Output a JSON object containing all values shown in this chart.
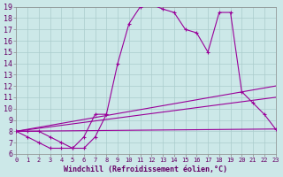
{
  "background_color": "#cce8e8",
  "line_color": "#990099",
  "grid_color": "#aacccc",
  "xlabel": "Windchill (Refroidissement éolien,°C)",
  "xlim": [
    0,
    23
  ],
  "ylim": [
    6,
    19
  ],
  "yticks": [
    6,
    7,
    8,
    9,
    10,
    11,
    12,
    13,
    14,
    15,
    16,
    17,
    18,
    19
  ],
  "xticks": [
    0,
    1,
    2,
    3,
    4,
    5,
    6,
    7,
    8,
    9,
    10,
    11,
    12,
    13,
    14,
    15,
    16,
    17,
    18,
    19,
    20,
    21,
    22,
    23
  ],
  "curve_main_x": [
    0,
    1,
    2,
    3,
    4,
    5,
    6,
    7,
    8,
    9,
    10,
    11,
    12,
    13,
    14,
    15,
    16,
    17,
    18,
    19,
    20,
    21,
    22,
    23
  ],
  "curve_main_y": [
    8.0,
    8.0,
    8.0,
    7.5,
    7.0,
    6.5,
    6.5,
    7.5,
    9.5,
    14.0,
    17.5,
    19.0,
    19.2,
    18.8,
    18.5,
    17.0,
    16.7,
    15.0,
    18.5,
    18.5,
    11.5,
    10.5,
    9.5,
    8.2
  ],
  "curve_dip_x": [
    0,
    1,
    2,
    3,
    4,
    5,
    6,
    7,
    8
  ],
  "curve_dip_y": [
    8.0,
    7.5,
    7.0,
    6.5,
    6.5,
    6.5,
    7.5,
    9.5,
    9.5
  ],
  "line1_x": [
    0,
    23
  ],
  "line1_y": [
    8.0,
    8.2
  ],
  "line2_x": [
    0,
    23
  ],
  "line2_y": [
    8.0,
    12.0
  ],
  "line3_x": [
    0,
    23
  ],
  "line3_y": [
    8.0,
    11.0
  ]
}
